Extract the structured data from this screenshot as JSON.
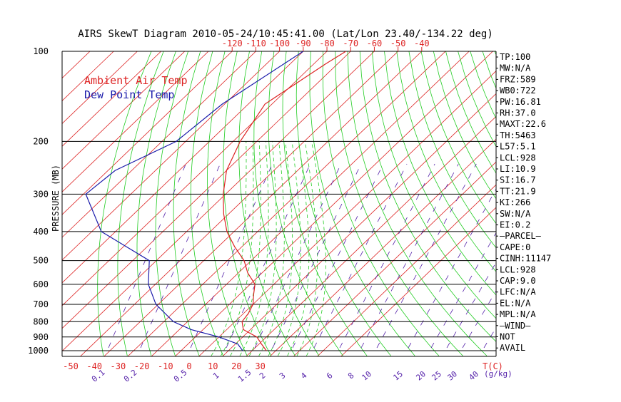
{
  "chart_data": {
    "type": "line",
    "title": "AIRS SkewT Diagram 2010-05-24/10:45:41.00 (Lat/Lon 23.40/-134.22 deg)",
    "ylabel": "PRESSURE (MB)",
    "top_temp_ticks": [
      "-120",
      "-110",
      "-100",
      "-90",
      "-80",
      "-70",
      "-60",
      "-50",
      "-40"
    ],
    "bottom_temp_ticks": [
      "-50",
      "-40",
      "-30",
      "-20",
      "-10",
      "0",
      "10",
      "20",
      "30"
    ],
    "bottom_axis_label": "T(C)",
    "mixing_ratio_ticks": [
      "0.1",
      "0.2",
      "0.5",
      "1",
      "1.5",
      "2",
      "3",
      "4",
      "6",
      "8",
      "10",
      "15",
      "20",
      "25",
      "30",
      "40"
    ],
    "mixing_ratio_unit": "(g/kg)",
    "pressure_ticks": [
      {
        "label": "100",
        "p": 100
      },
      {
        "label": "200",
        "p": 200
      },
      {
        "label": "300",
        "p": 300
      },
      {
        "label": "400",
        "p": 400
      },
      {
        "label": "500",
        "p": 500
      },
      {
        "label": "600",
        "p": 600
      },
      {
        "label": "700",
        "p": 700
      },
      {
        "label": "800",
        "p": 800
      },
      {
        "label": "900",
        "p": 900
      },
      {
        "label": "1000",
        "p": 1000
      }
    ],
    "legend": [
      {
        "label": "Ambient Air Temp",
        "color": "#dd2222"
      },
      {
        "label": "Dew Point Temp",
        "color": "#1a1aaa"
      }
    ],
    "series": [
      {
        "name": "Ambient Air Temp",
        "color": "#dd2222",
        "points": [
          [
            100,
            -72
          ],
          [
            110,
            -75
          ],
          [
            150,
            -83
          ],
          [
            200,
            -77
          ],
          [
            250,
            -70
          ],
          [
            300,
            -61
          ],
          [
            350,
            -52
          ],
          [
            400,
            -43
          ],
          [
            450,
            -33
          ],
          [
            500,
            -23
          ],
          [
            550,
            -16
          ],
          [
            600,
            -8
          ],
          [
            650,
            -4
          ],
          [
            700,
            0
          ],
          [
            750,
            2
          ],
          [
            800,
            3
          ],
          [
            850,
            7
          ],
          [
            900,
            16
          ],
          [
            950,
            21
          ],
          [
            1000,
            26
          ]
        ]
      },
      {
        "name": "Dew Point Temp",
        "color": "#1a1aaa",
        "points": [
          [
            100,
            -90
          ],
          [
            150,
            -101
          ],
          [
            200,
            -104
          ],
          [
            250,
            -117
          ],
          [
            300,
            -119
          ],
          [
            400,
            -96
          ],
          [
            500,
            -63
          ],
          [
            600,
            -53
          ],
          [
            700,
            -41
          ],
          [
            800,
            -26
          ],
          [
            850,
            -15
          ],
          [
            900,
            0
          ],
          [
            950,
            11
          ],
          [
            1000,
            16
          ]
        ]
      }
    ],
    "indices": [
      "TP:100",
      "MW:N/A",
      "FRZ:589",
      "WB0:722",
      "PW:16.81",
      "RH:37.0",
      "MAXT:22.6",
      "TH:5463",
      "L57:5.1",
      "LCL:928",
      "LI:10.9",
      "SI:16.7",
      "TT:21.9",
      "KI:266",
      "SW:N/A",
      "EI:0.2",
      "—PARCEL—",
      "CAPE:0",
      "CINH:11147",
      "LCL:928",
      "CAP:9.0",
      "LFC:N/A",
      "EL:N/A",
      "MPL:N/A",
      "—WIND—",
      "NOT",
      "AVAIL"
    ],
    "colors": {
      "isotherm": "#dd2222",
      "dry_adiabat": "#22cc22",
      "moist_adiabat": "#22cc22",
      "mixing_ratio": "#5522aa",
      "axis": "#000000"
    }
  }
}
